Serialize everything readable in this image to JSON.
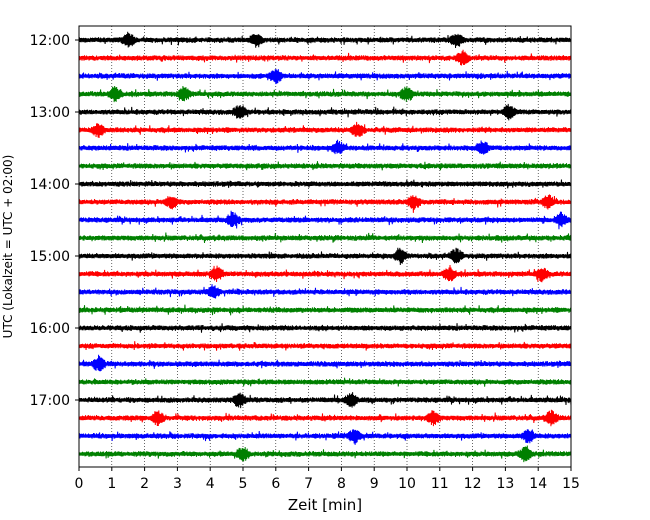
{
  "chart_data": {
    "type": "line",
    "title": "",
    "xlabel": "Zeit  [min]",
    "ylabel": "UTC (Lokalzeit = UTC + 02:00)",
    "xlim": [
      0,
      15
    ],
    "x_ticks": [
      "0",
      "1",
      "2",
      "3",
      "4",
      "5",
      "6",
      "7",
      "8",
      "9",
      "10",
      "11",
      "12",
      "13",
      "14",
      "15"
    ],
    "y_ticks": [
      "12:00",
      "13:00",
      "14:00",
      "15:00",
      "16:00",
      "17:00"
    ],
    "trace_start": "12:00",
    "trace_interval_minutes": 15,
    "grid": "vertical dotted at each minute",
    "color_cycle": [
      "#000000",
      "#ff0000",
      "#0000ff",
      "#008000"
    ],
    "series": [
      {
        "start": "12:00",
        "events": [
          1.5,
          5.4,
          11.5
        ]
      },
      {
        "start": "12:15",
        "events": [
          11.7
        ]
      },
      {
        "start": "12:30",
        "events": [
          6.0
        ]
      },
      {
        "start": "12:45",
        "events": [
          1.1,
          3.2,
          10.0
        ]
      },
      {
        "start": "13:00",
        "events": [
          4.9,
          13.1
        ]
      },
      {
        "start": "13:15",
        "events": [
          0.6,
          8.5
        ]
      },
      {
        "start": "13:30",
        "events": [
          7.9,
          12.3
        ]
      },
      {
        "start": "13:45",
        "events": []
      },
      {
        "start": "14:00",
        "events": []
      },
      {
        "start": "14:15",
        "events": [
          2.8,
          10.2,
          14.3
        ]
      },
      {
        "start": "14:30",
        "events": [
          4.7,
          14.7
        ]
      },
      {
        "start": "14:45",
        "events": []
      },
      {
        "start": "15:00",
        "events": [
          9.8,
          11.5
        ]
      },
      {
        "start": "15:15",
        "events": [
          4.2,
          11.3,
          14.1
        ]
      },
      {
        "start": "15:30",
        "events": [
          4.1
        ]
      },
      {
        "start": "15:45",
        "events": []
      },
      {
        "start": "16:00",
        "events": []
      },
      {
        "start": "16:15",
        "events": []
      },
      {
        "start": "16:30",
        "events": [
          0.6
        ]
      },
      {
        "start": "16:45",
        "events": []
      },
      {
        "start": "17:00",
        "events": [
          4.9,
          8.3
        ]
      },
      {
        "start": "17:15",
        "events": [
          2.4,
          10.8,
          14.4
        ]
      },
      {
        "start": "17:30",
        "events": [
          8.4,
          13.7
        ]
      },
      {
        "start": "17:45",
        "events": [
          5.0,
          13.6
        ]
      }
    ]
  }
}
